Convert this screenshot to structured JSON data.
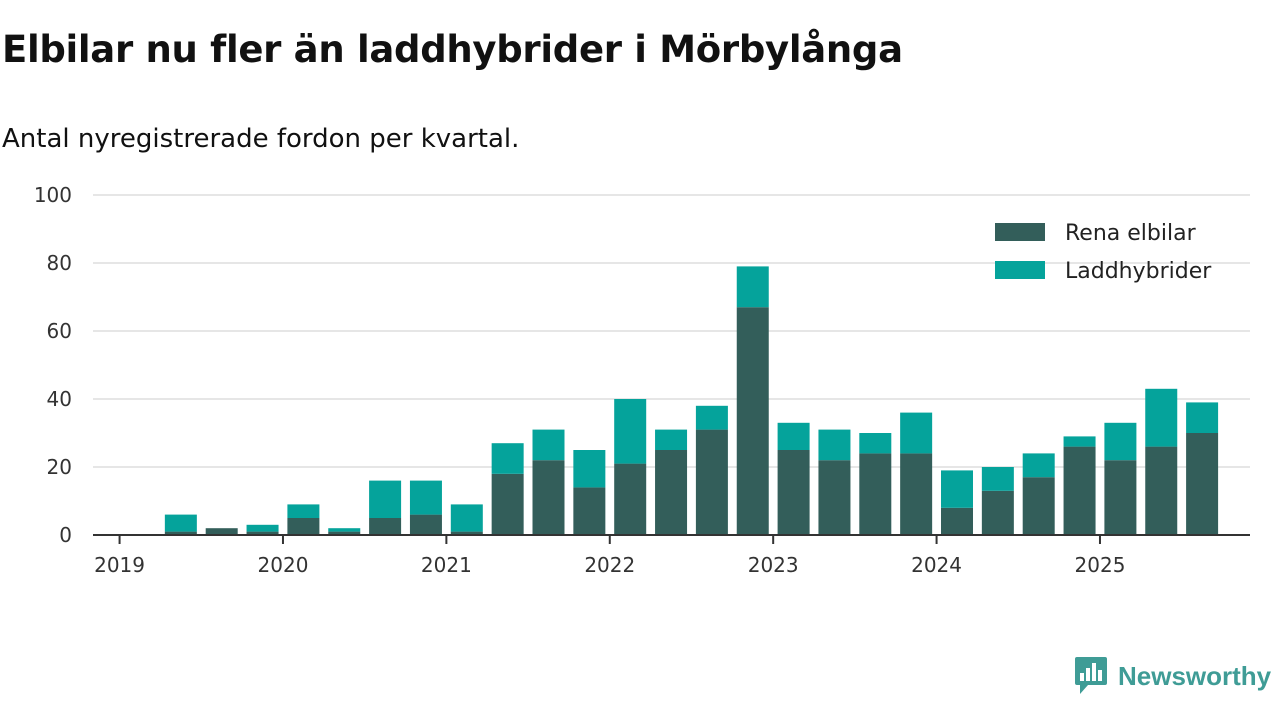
{
  "header": {
    "title": "Elbilar nu fler än laddhybrider i Mörbylånga",
    "subtitle": "Antal nyregistrerade fordon per kvartal."
  },
  "brand": {
    "name": "Newsworthy",
    "icon": "newsworthy-logo-icon",
    "color": "#3f9c96"
  },
  "colors": {
    "series_0": "#335e5a",
    "series_1": "#05a39b",
    "grid": "#dddddd",
    "axis": "#333333"
  },
  "chart_data": {
    "type": "bar",
    "stacked": true,
    "title": "Elbilar nu fler än laddhybrider i Mörbylånga",
    "subtitle": "Antal nyregistrerade fordon per kvartal.",
    "xlabel": "",
    "ylabel": "",
    "ylim": [
      0,
      100
    ],
    "yticks": [
      0,
      20,
      40,
      60,
      80,
      100
    ],
    "grid": true,
    "legend_position": "top-right",
    "x_tick_labels": [
      "2019",
      "2020",
      "2021",
      "2022",
      "2023",
      "2024",
      "2025"
    ],
    "categories": [
      "2019 Q1",
      "2019 Q2",
      "2019 Q3",
      "2019 Q4",
      "2020 Q1",
      "2020 Q2",
      "2020 Q3",
      "2020 Q4",
      "2021 Q1",
      "2021 Q2",
      "2021 Q3",
      "2021 Q4",
      "2022 Q1",
      "2022 Q2",
      "2022 Q3",
      "2022 Q4",
      "2023 Q1",
      "2023 Q2",
      "2023 Q3",
      "2023 Q4",
      "2024 Q1",
      "2024 Q2",
      "2024 Q3",
      "2024 Q4",
      "2025 Q1",
      "2025 Q2",
      "2025 Q3"
    ],
    "series": [
      {
        "name": "Rena elbilar",
        "color": "#335e5a",
        "values": [
          0,
          1,
          2,
          1,
          5,
          1,
          5,
          6,
          1,
          18,
          22,
          14,
          21,
          25,
          31,
          67,
          25,
          22,
          24,
          24,
          8,
          13,
          17,
          26,
          22,
          26,
          30
        ]
      },
      {
        "name": "Laddhybrider",
        "color": "#05a39b",
        "values": [
          0,
          5,
          0,
          2,
          4,
          1,
          11,
          10,
          8,
          9,
          9,
          11,
          19,
          6,
          7,
          12,
          8,
          9,
          6,
          12,
          11,
          7,
          7,
          3,
          11,
          17,
          9
        ]
      }
    ]
  }
}
